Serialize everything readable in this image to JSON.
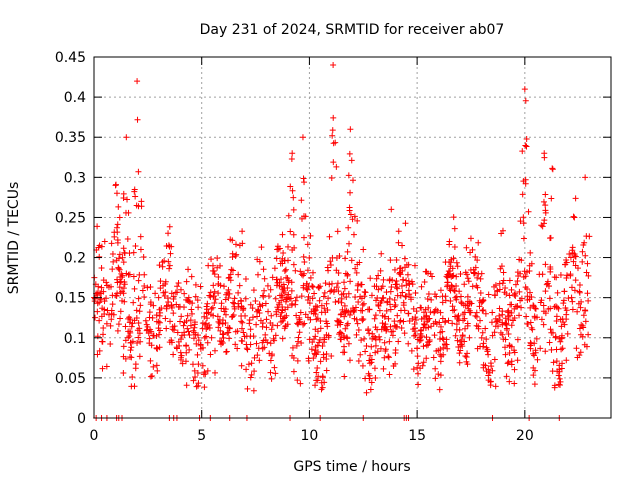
{
  "chart_data": {
    "type": "scatter",
    "title": "Day 231 of 2024, SRMTID for receiver ab07",
    "xlabel": "GPS time / hours",
    "ylabel": "SRMTID / TECUs",
    "xlim": [
      0,
      24
    ],
    "ylim": [
      0,
      0.45
    ],
    "xticks": [
      0,
      5,
      10,
      15,
      20
    ],
    "yticks": [
      0,
      0.05,
      0.1,
      0.15,
      0.2,
      0.25,
      0.3,
      0.35,
      0.4,
      0.45
    ],
    "xtick_labels": [
      "0",
      "5",
      "10",
      "15",
      "20"
    ],
    "ytick_labels": [
      "0",
      "0.05",
      "0.1",
      "0.15",
      "0.2",
      "0.25",
      "0.3",
      "0.35",
      "0.4",
      "0.45"
    ],
    "grid": true,
    "series": [
      {
        "name": "SRMTID",
        "color": "#ff0000",
        "marker": "plus",
        "peaks": [
          {
            "x": 0.5,
            "y": 0.22
          },
          {
            "x": 1.0,
            "y": 0.29
          },
          {
            "x": 1.5,
            "y": 0.35
          },
          {
            "x": 2.0,
            "y": 0.42
          },
          {
            "x": 2.2,
            "y": 0.27
          },
          {
            "x": 3.0,
            "y": 0.15
          },
          {
            "x": 4.3,
            "y": 0.17
          },
          {
            "x": 5.3,
            "y": 0.19
          },
          {
            "x": 8.5,
            "y": 0.21
          },
          {
            "x": 9.2,
            "y": 0.33
          },
          {
            "x": 9.7,
            "y": 0.35
          },
          {
            "x": 11.1,
            "y": 0.44
          },
          {
            "x": 11.9,
            "y": 0.36
          },
          {
            "x": 12.5,
            "y": 0.21
          },
          {
            "x": 13.8,
            "y": 0.26
          },
          {
            "x": 14.9,
            "y": 0.19
          },
          {
            "x": 16.5,
            "y": 0.22
          },
          {
            "x": 18.0,
            "y": 0.18
          },
          {
            "x": 18.9,
            "y": 0.23
          },
          {
            "x": 20.0,
            "y": 0.41
          },
          {
            "x": 20.9,
            "y": 0.33
          },
          {
            "x": 21.3,
            "y": 0.31
          },
          {
            "x": 22.3,
            "y": 0.25
          },
          {
            "x": 22.8,
            "y": 0.3
          }
        ],
        "zero_points_x": [
          0.1,
          0.35,
          0.6,
          1.05,
          1.15,
          1.3,
          3.5,
          3.7,
          3.85,
          4.9,
          5.4,
          6.3,
          7.1,
          9.1,
          10.5,
          12.5,
          14.4,
          14.5,
          14.6,
          18.5,
          20.2,
          21.6
        ]
      }
    ]
  }
}
